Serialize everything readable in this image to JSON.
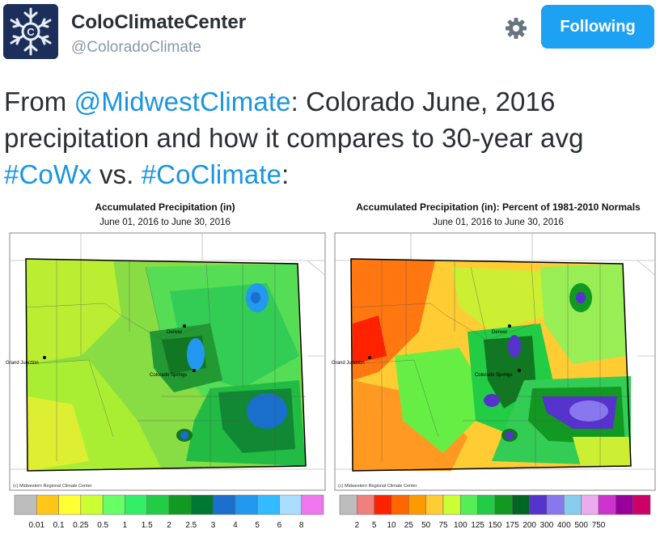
{
  "tweet": {
    "author_name": "ColoClimateCenter",
    "author_handle": "@ColoradoClimate",
    "follow_label": "Following",
    "text_parts": [
      {
        "type": "link",
        "text": "@MidwestClimate"
      },
      {
        "type": "text",
        "text": ": Colorado June, 2016 precipitation and how it compares to 30-year avg "
      },
      {
        "type": "link",
        "text": "#CoWx"
      },
      {
        "type": "text",
        "text": " vs. "
      },
      {
        "type": "link",
        "text": "#CoClimate"
      },
      {
        "type": "text",
        "text": ":"
      }
    ],
    "text_prefix": "From "
  },
  "maps": [
    {
      "title": "Accumulated Precipitation (in)",
      "subtitle": "June 01, 2016 to June 30, 2016",
      "credit": "(c) Midwestern Regional Climate Center",
      "city_labels": [
        "Denver",
        "Grand Junction",
        "Colorado Springs"
      ],
      "legend": {
        "labels": [
          "0.01",
          "0.1",
          "0.25",
          "0.5",
          "1",
          "1.5",
          "2",
          "2.5",
          "3",
          "4",
          "5",
          "6",
          "8"
        ],
        "colors": [
          "#bdbdbd",
          "#ffc61a",
          "#ffff33",
          "#ccff33",
          "#66ff66",
          "#33ee66",
          "#22cc44",
          "#119922",
          "#007733",
          "#1a6fcc",
          "#2299ee",
          "#33bbff",
          "#aaddff",
          "#ee77ee"
        ]
      }
    },
    {
      "title": "Accumulated Precipitation (in): Percent of 1981-2010 Normals",
      "subtitle": "June 01, 2016 to June 30, 2016",
      "credit": "(c) Midwestern Regional Climate Center",
      "city_labels": [
        "Denver",
        "Grand Junction",
        "Colorado Springs"
      ],
      "legend": {
        "labels": [
          "2",
          "5",
          "10",
          "25",
          "50",
          "75",
          "100",
          "125",
          "150",
          "175",
          "200",
          "300",
          "400",
          "500",
          "750"
        ],
        "colors": [
          "#bdbdbd",
          "#f08080",
          "#ff2200",
          "#ff6600",
          "#ff9900",
          "#ffcc33",
          "#ccff33",
          "#55ee55",
          "#22cc44",
          "#119922",
          "#006622",
          "#5533cc",
          "#8877ee",
          "#88ccee",
          "#eeaaee",
          "#cc33cc",
          "#990099",
          "#cc0066"
        ]
      }
    }
  ],
  "icons": {
    "settings": "gear-icon",
    "avatar": "snowflake-logo"
  }
}
